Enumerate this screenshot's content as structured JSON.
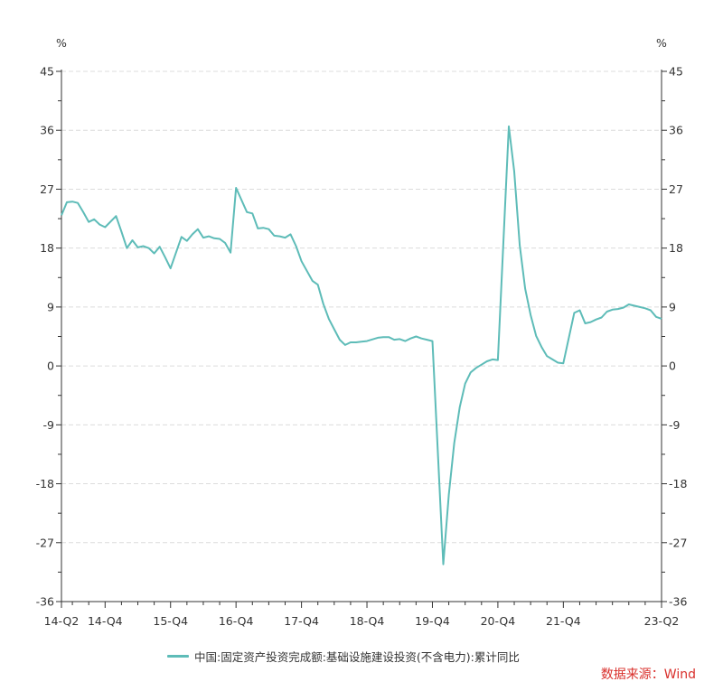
{
  "chart_data": {
    "type": "line",
    "title": "",
    "xlabel": "",
    "ylabel": "%",
    "ylabel_right": "%",
    "ylim": [
      -36,
      45
    ],
    "yticks": [
      45,
      36,
      27,
      18,
      9,
      0,
      -9,
      -18,
      -27,
      -36
    ],
    "grid": true,
    "legend_position": "bottom",
    "x_tick_labels": [
      "14-Q2",
      "14-Q4",
      "15-Q4",
      "16-Q4",
      "17-Q4",
      "18-Q4",
      "19-Q4",
      "20-Q4",
      "21-Q4",
      "23-Q2"
    ],
    "x_tick_dates": [
      "2014-04",
      "2014-12",
      "2015-12",
      "2016-12",
      "2017-12",
      "2018-12",
      "2019-12",
      "2020-12",
      "2021-12",
      "2023-06"
    ],
    "x_range": [
      "2014-04",
      "2023-06"
    ],
    "series": [
      {
        "name": "中国:固定资产投资完成额:基础设施建设投资(不含电力):累计同比",
        "color": "#5ebcb8",
        "x": [
          "2014-04",
          "2014-05",
          "2014-06",
          "2014-07",
          "2014-08",
          "2014-09",
          "2014-10",
          "2014-11",
          "2014-12",
          "2015-02",
          "2015-03",
          "2015-04",
          "2015-05",
          "2015-06",
          "2015-07",
          "2015-08",
          "2015-09",
          "2015-10",
          "2015-11",
          "2015-12",
          "2016-02",
          "2016-03",
          "2016-04",
          "2016-05",
          "2016-06",
          "2016-07",
          "2016-08",
          "2016-09",
          "2016-10",
          "2016-11",
          "2016-12",
          "2017-02",
          "2017-03",
          "2017-04",
          "2017-05",
          "2017-06",
          "2017-07",
          "2017-08",
          "2017-09",
          "2017-10",
          "2017-11",
          "2017-12",
          "2018-02",
          "2018-03",
          "2018-04",
          "2018-05",
          "2018-06",
          "2018-07",
          "2018-08",
          "2018-09",
          "2018-10",
          "2018-11",
          "2018-12",
          "2019-02",
          "2019-03",
          "2019-04",
          "2019-05",
          "2019-06",
          "2019-07",
          "2019-08",
          "2019-09",
          "2019-10",
          "2019-11",
          "2019-12",
          "2020-02",
          "2020-03",
          "2020-04",
          "2020-05",
          "2020-06",
          "2020-07",
          "2020-08",
          "2020-09",
          "2020-10",
          "2020-11",
          "2020-12",
          "2021-02",
          "2021-03",
          "2021-04",
          "2021-05",
          "2021-06",
          "2021-07",
          "2021-08",
          "2021-09",
          "2021-10",
          "2021-11",
          "2021-12",
          "2022-02",
          "2022-03",
          "2022-04",
          "2022-05",
          "2022-06",
          "2022-07",
          "2022-08",
          "2022-09",
          "2022-10",
          "2022-11",
          "2022-12",
          "2023-02",
          "2023-03",
          "2023-04",
          "2023-05",
          "2023-06"
        ],
        "values": [
          23.0,
          25.0,
          25.1,
          24.9,
          23.5,
          22.0,
          22.4,
          21.6,
          21.2,
          22.9,
          20.5,
          18.0,
          19.2,
          18.1,
          18.3,
          18.0,
          17.2,
          18.2,
          16.6,
          14.9,
          19.7,
          19.1,
          20.1,
          20.9,
          19.6,
          19.8,
          19.5,
          19.4,
          18.8,
          17.3,
          27.2,
          23.5,
          23.3,
          21.0,
          21.1,
          20.9,
          19.9,
          19.8,
          19.6,
          20.1,
          18.3,
          16.0,
          13.0,
          12.4,
          9.5,
          7.2,
          5.6,
          4.0,
          3.2,
          3.6,
          3.6,
          3.7,
          3.8,
          4.3,
          4.4,
          4.4,
          4.0,
          4.1,
          3.8,
          4.2,
          4.5,
          4.2,
          4.0,
          3.8,
          -30.3,
          -19.7,
          -11.8,
          -6.3,
          -2.7,
          -1.0,
          -0.3,
          0.2,
          0.7,
          1.0,
          0.9,
          36.6,
          29.7,
          18.4,
          11.8,
          7.8,
          4.6,
          2.9,
          1.5,
          1.0,
          0.5,
          0.4,
          8.1,
          8.5,
          6.5,
          6.7,
          7.1,
          7.4,
          8.3,
          8.6,
          8.7,
          8.9,
          9.4,
          9.0,
          8.8,
          8.5,
          7.5,
          7.2
        ]
      }
    ]
  },
  "axis": {
    "left_unit": "%",
    "right_unit": "%",
    "y_labels": [
      "45",
      "36",
      "27",
      "18",
      "9",
      "0",
      "-9",
      "-18",
      "-27",
      "-36"
    ],
    "x_labels": [
      "14-Q2",
      "14-Q4",
      "15-Q4",
      "16-Q4",
      "17-Q4",
      "18-Q4",
      "19-Q4",
      "20-Q4",
      "21-Q4",
      "23-Q2"
    ]
  },
  "legend": {
    "label": "中国:固定资产投资完成额:基础设施建设投资(不含电力):累计同比",
    "color": "#5ebcb8"
  },
  "source": {
    "label": "数据来源：Wind"
  }
}
